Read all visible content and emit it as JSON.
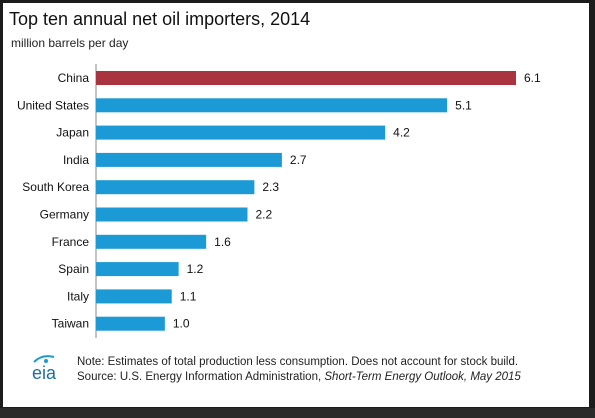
{
  "chart_data": {
    "type": "bar",
    "orientation": "horizontal",
    "title": "Top ten annual  net oil importers, 2014",
    "subtitle": "million barrels  per day",
    "categories": [
      "China",
      "United States",
      "Japan",
      "India",
      "South Korea",
      "Germany",
      "France",
      "Spain",
      "Italy",
      "Taiwan"
    ],
    "values": [
      6.1,
      5.1,
      4.2,
      2.7,
      2.3,
      2.2,
      1.6,
      1.2,
      1.1,
      1.0
    ],
    "value_labels": [
      "6.1",
      "5.1",
      "4.2",
      "2.7",
      "2.3",
      "2.2",
      "1.6",
      "1.2",
      "1.1",
      "1.0"
    ],
    "highlight_index": 0,
    "colors": {
      "highlight": "#a9343f",
      "default": "#1b9ad6"
    },
    "xlim": [
      0,
      6.1
    ],
    "grid": false
  },
  "footer": {
    "logo_text": "eia",
    "note_line1": "Note: Estimates of total production less consumption. Does not account for stock build.",
    "source_prefix": "Source: U.S. Energy Information Administration, ",
    "source_title": "Short-Term Energy Outlook, May 2015"
  }
}
